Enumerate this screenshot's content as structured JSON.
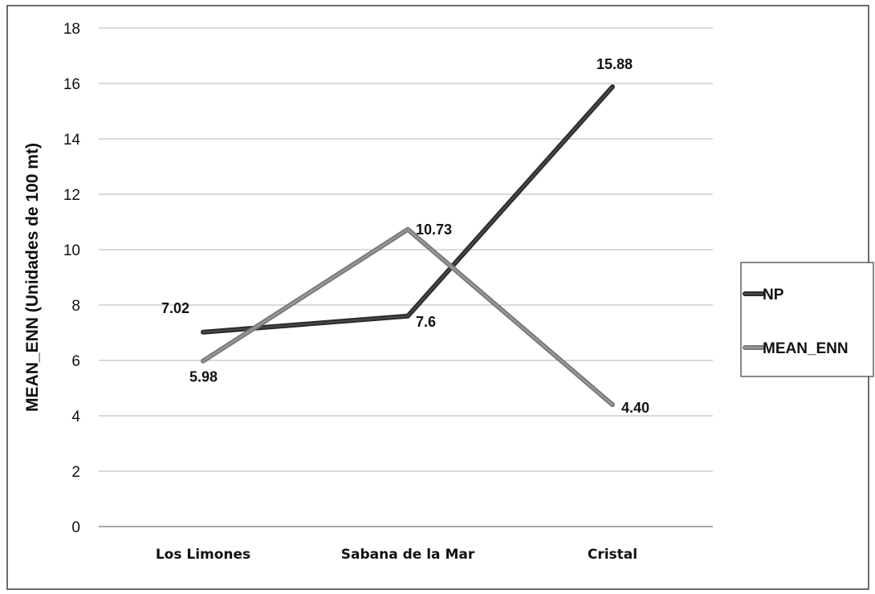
{
  "chart_data": {
    "type": "line",
    "title": "",
    "xlabel": "",
    "ylabel": "MEAN_ENN (Unidades de 100 mt)",
    "categories": [
      "Los Limones",
      "Sabana de la Mar",
      "Cristal"
    ],
    "ylim": [
      0,
      18
    ],
    "yticks": [
      0,
      2,
      4,
      6,
      8,
      10,
      12,
      14,
      16,
      18
    ],
    "grid": true,
    "legend_position": "right",
    "series": [
      {
        "name": "NP",
        "values": [
          7.02,
          7.6,
          15.88
        ],
        "labels": [
          "7.02",
          "7.6",
          "15.88"
        ],
        "color": "#2b2b2b"
      },
      {
        "name": "MEAN_ENN",
        "values": [
          5.98,
          10.73,
          4.4
        ],
        "labels": [
          "5.98",
          "10.73",
          "4.40"
        ],
        "color": "#7a7a7a"
      }
    ]
  }
}
